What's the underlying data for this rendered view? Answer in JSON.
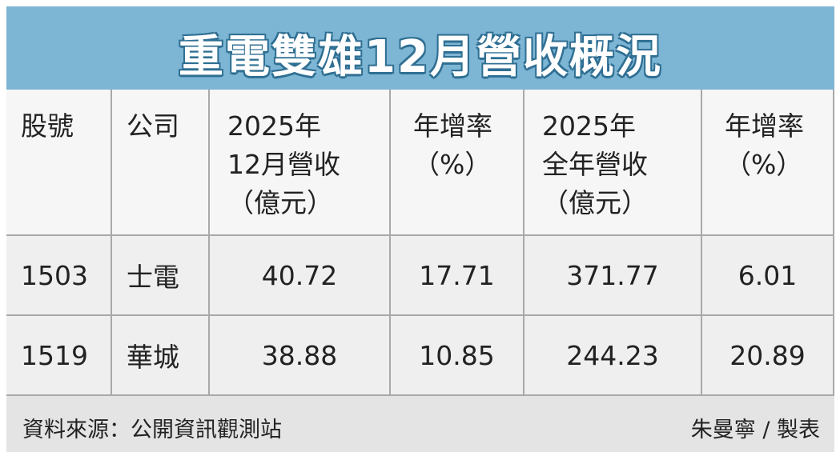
{
  "title": "重電雙雄12月營收概況",
  "table": {
    "header": [
      [
        "股號"
      ],
      [
        "公司"
      ],
      [
        "2025年",
        "12月營收",
        "（億元）"
      ],
      [
        "年增率",
        "（%）"
      ],
      [
        "2025年",
        "全年營收",
        "（億元）"
      ],
      [
        "年增率",
        "（%）"
      ]
    ],
    "rows": [
      [
        "1503",
        "士電",
        "40.72",
        "17.71",
        "371.77",
        "6.01"
      ],
      [
        "1519",
        "華城",
        "38.88",
        "10.85",
        "244.23",
        "20.89"
      ]
    ]
  },
  "footer": {
    "source": "資料來源：公開資訊觀測站",
    "credit": "朱曼寧 / 製表"
  }
}
